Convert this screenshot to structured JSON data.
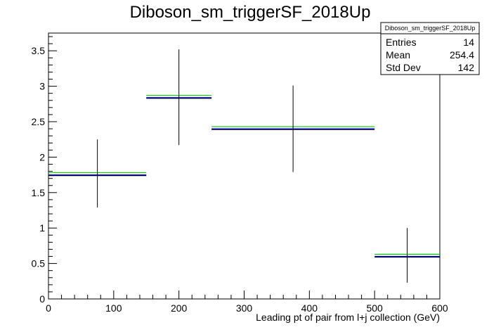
{
  "chart_data": {
    "type": "histogram",
    "title": "Diboson_sm_triggerSF_2018Up",
    "xlabel": "Leading pt of pair from l+j collection (GeV)",
    "ylabel": "",
    "xlim": [
      0,
      600
    ],
    "ylim": [
      0,
      3.75
    ],
    "x_ticks": [
      "0",
      "100",
      "200",
      "300",
      "400",
      "500",
      "600"
    ],
    "y_ticks": [
      "0",
      "0.5",
      "1",
      "1.5",
      "2",
      "2.5",
      "3",
      "3.5"
    ],
    "grid": false,
    "bins": [
      {
        "x_low": 0,
        "x_high": 150,
        "x_center": 75,
        "value": 1.76,
        "err_low": 1.29,
        "err_high": 2.25
      },
      {
        "x_low": 150,
        "x_high": 250,
        "x_center": 200,
        "value": 2.85,
        "err_low": 2.17,
        "err_high": 3.52
      },
      {
        "x_low": 250,
        "x_high": 500,
        "x_center": 375,
        "value": 2.41,
        "err_low": 1.79,
        "err_high": 3.01
      },
      {
        "x_low": 500,
        "x_high": 600,
        "x_center": 550,
        "value": 0.61,
        "err_low": 0.23,
        "err_high": 1.0
      }
    ],
    "overlay_offsets": [
      {
        "color": "#00cc00",
        "delta": 0.02
      },
      {
        "color": "#0000ff",
        "delta": -0.01
      },
      {
        "color": "#000000",
        "delta": -0.02
      }
    ],
    "stats_box": {
      "name": "Diboson_sm_triggerSF_2018Up",
      "rows": [
        {
          "label": "Entries",
          "value": "14"
        },
        {
          "label": "Mean",
          "value": "254.4"
        },
        {
          "label": "Std Dev",
          "value": "142"
        }
      ]
    }
  }
}
